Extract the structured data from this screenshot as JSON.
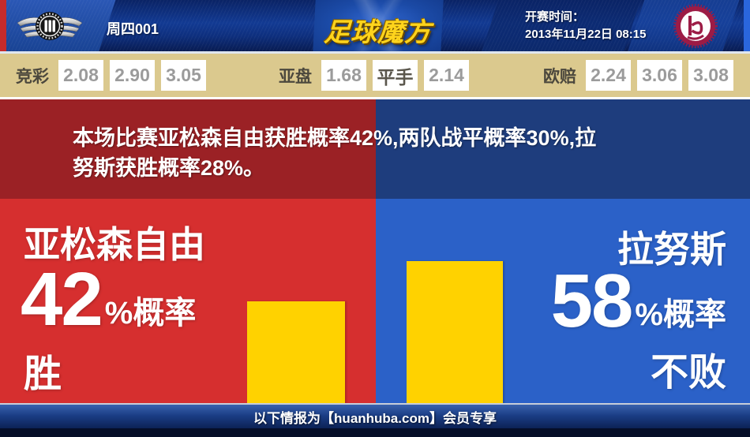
{
  "header": {
    "match_label": "周四001",
    "site_logo": "足球魔方",
    "kickoff_label": "开赛时间：",
    "kickoff_time": "2013年11月22日 08:15",
    "home_badge": "libertad-asuncion-winged-crest",
    "away_badge": "lanus-garnet-crest"
  },
  "odds": {
    "groups": [
      {
        "label": "竞彩",
        "values": [
          "2.08",
          "2.90",
          "3.05"
        ]
      },
      {
        "label": "亚盘",
        "values": [
          "1.68",
          "平手",
          "2.14"
        ]
      },
      {
        "label": "欧赔",
        "values": [
          "2.24",
          "3.06",
          "3.08"
        ]
      }
    ]
  },
  "summary": {
    "full_text": "本场比赛亚松森自由获胜概率42%,两队战平概率30%,拉努斯获胜概率28%。",
    "lines": [
      "本场比赛亚松森自由获胜概率42%,两队战平概率30%,拉",
      "努斯获胜概率28%。"
    ]
  },
  "home": {
    "name": "亚松森自由",
    "value": "42",
    "unit": "%",
    "label": "概率",
    "result": "胜"
  },
  "away": {
    "name": "拉努斯",
    "value": "58",
    "unit": "%",
    "label": "概率",
    "result": "不败"
  },
  "footer": {
    "text": "以下情报为【huanhuba.com】会员专享"
  },
  "colors": {
    "home_red": "#d62f2f",
    "away_blue": "#2b61c8",
    "band_red": "#9b2125",
    "band_blue": "#1e3d7d",
    "bar_yellow": "#ffd200",
    "odds_bar_bg": "#dbc98e",
    "header_navy": "#123a93",
    "logo_gold": "#ffd41c"
  },
  "chart_data": {
    "type": "bar",
    "categories": [
      "亚松森自由 胜",
      "拉努斯 不败"
    ],
    "values": [
      42,
      58
    ],
    "unit": "%",
    "ylim": [
      0,
      100
    ],
    "bar_color": "#ffd200",
    "probabilities_from_text": {
      "home_win": 42,
      "draw": 30,
      "away_win": 28
    }
  }
}
